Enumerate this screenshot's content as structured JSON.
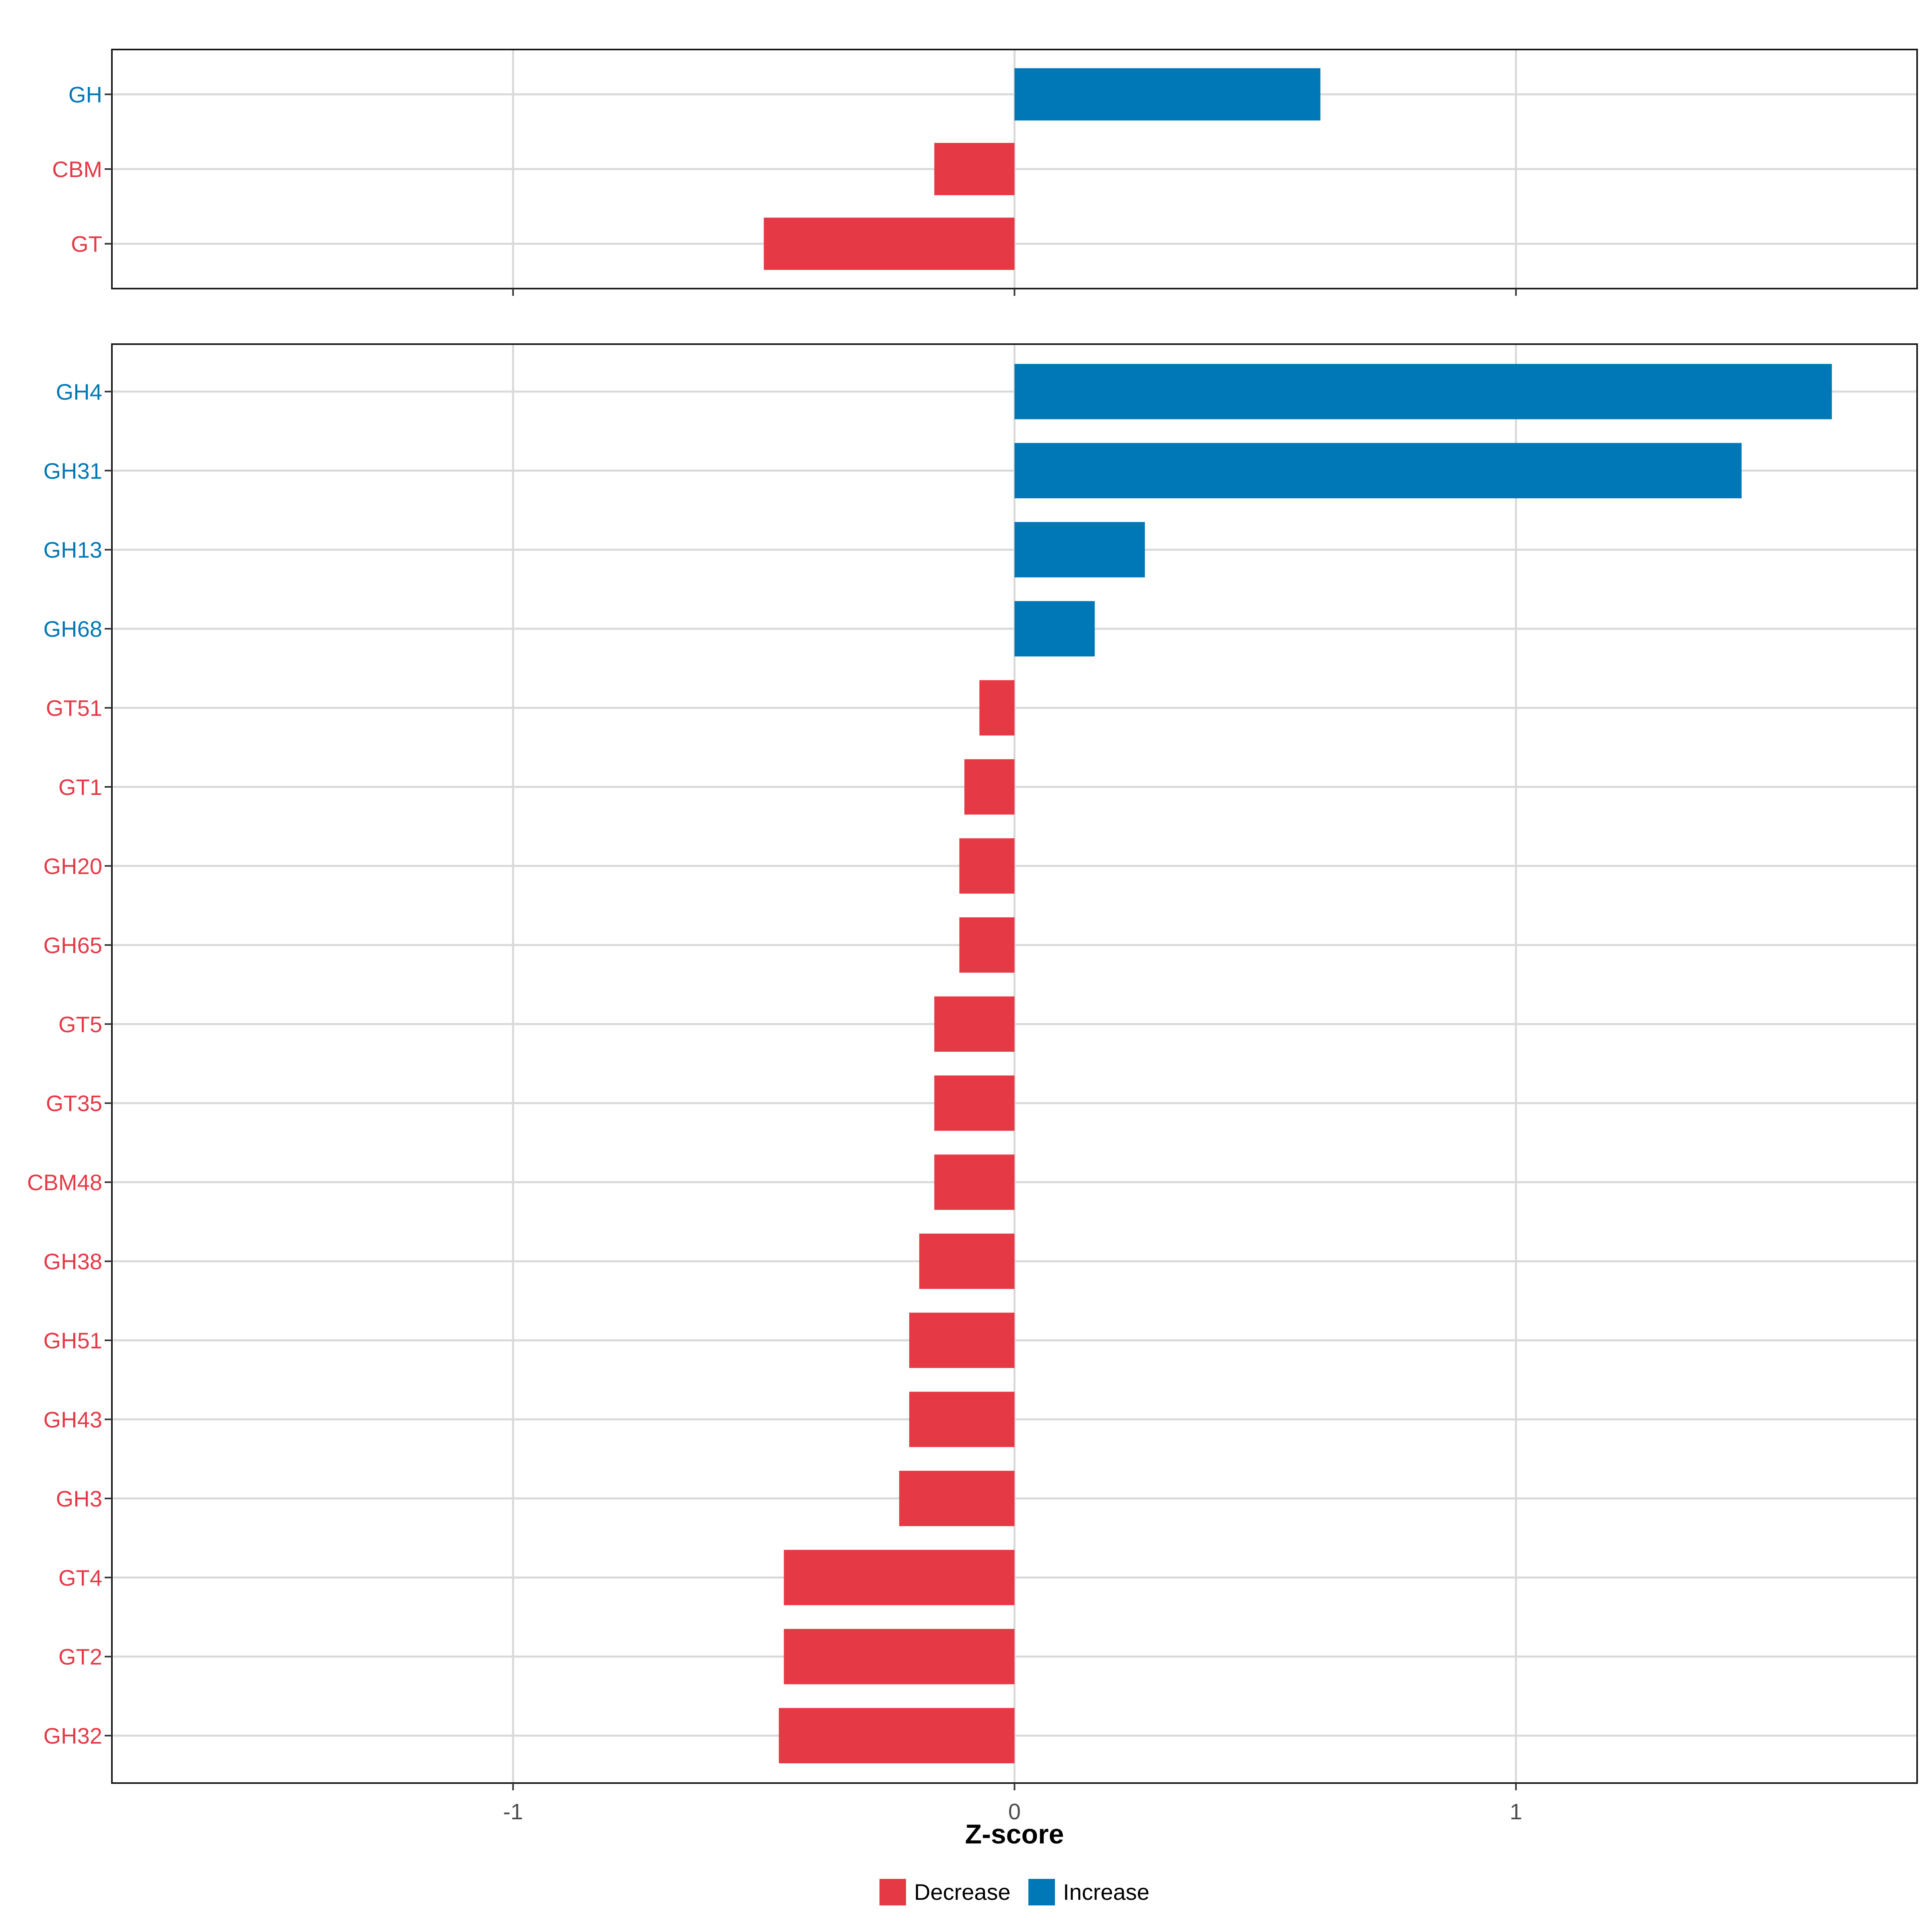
{
  "chart_data": [
    {
      "type": "bar",
      "orientation": "horizontal",
      "panel": "top",
      "categories": [
        "GH",
        "CBM",
        "GT"
      ],
      "values": [
        0.61,
        -0.16,
        -0.5
      ],
      "direction": [
        "Increase",
        "Decrease",
        "Decrease"
      ],
      "xlim": [
        -1.8,
        1.8
      ],
      "xticks": [
        -1,
        0,
        1
      ],
      "grid": true
    },
    {
      "type": "bar",
      "orientation": "horizontal",
      "panel": "bottom",
      "categories": [
        "GH4",
        "GH31",
        "GH13",
        "GH68",
        "GT51",
        "GT1",
        "GH20",
        "GH65",
        "GT5",
        "GT35",
        "CBM48",
        "GH38",
        "GH51",
        "GH43",
        "GH3",
        "GT4",
        "GT2",
        "GH32"
      ],
      "values": [
        1.63,
        1.45,
        0.26,
        0.16,
        -0.07,
        -0.1,
        -0.11,
        -0.11,
        -0.16,
        -0.16,
        -0.16,
        -0.19,
        -0.21,
        -0.21,
        -0.23,
        -0.46,
        -0.46,
        -0.47
      ],
      "direction": [
        "Increase",
        "Increase",
        "Increase",
        "Increase",
        "Decrease",
        "Decrease",
        "Decrease",
        "Decrease",
        "Decrease",
        "Decrease",
        "Decrease",
        "Decrease",
        "Decrease",
        "Decrease",
        "Decrease",
        "Decrease",
        "Decrease",
        "Decrease"
      ],
      "xlim": [
        -1.8,
        1.8
      ],
      "xticks": [
        -1,
        0,
        1
      ],
      "xtick_labels": [
        "-1",
        "0",
        "1"
      ],
      "xlabel": "Z-score",
      "grid": true
    }
  ],
  "colors": {
    "Decrease": "#E63946",
    "Increase": "#0077B6"
  },
  "legend": {
    "position": "bottom",
    "items": [
      {
        "label": "Decrease",
        "key": "Decrease"
      },
      {
        "label": "Increase",
        "key": "Increase"
      }
    ]
  }
}
